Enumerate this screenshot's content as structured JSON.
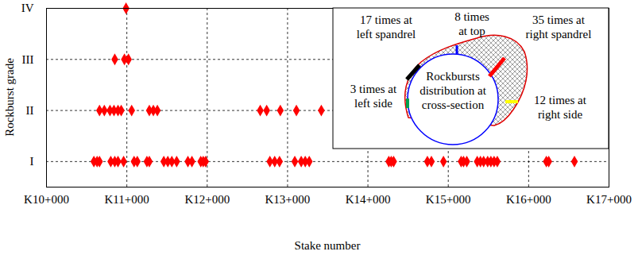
{
  "chart_data": {
    "type": "scatter",
    "x_label": "Stake number",
    "y_label": "Rockburst grade",
    "x": [
      10590,
      10630,
      10660,
      10800,
      10850,
      10890,
      10960,
      11090,
      11130,
      11250,
      11280,
      11460,
      11510,
      11560,
      11620,
      11760,
      11810,
      11920,
      11950,
      11980,
      12780,
      12840,
      12900,
      13090,
      13170,
      13220,
      13270,
      14260,
      14290,
      14320,
      14740,
      14790,
      14940,
      15160,
      15190,
      15230,
      15360,
      15400,
      15440,
      15490,
      15530,
      15570,
      15610,
      16220,
      16250,
      16570,
      10660,
      10720,
      10790,
      10840,
      10890,
      10930,
      11060,
      11280,
      11330,
      11380,
      12660,
      12740,
      12910,
      13110,
      13420,
      10850,
      10970,
      11020,
      10990
    ],
    "values": [
      1,
      1,
      1,
      1,
      1,
      1,
      1,
      1,
      1,
      1,
      1,
      1,
      1,
      1,
      1,
      1,
      1,
      1,
      1,
      1,
      1,
      1,
      1,
      1,
      1,
      1,
      1,
      1,
      1,
      1,
      1,
      1,
      1,
      1,
      1,
      1,
      1,
      1,
      1,
      1,
      1,
      1,
      1,
      1,
      1,
      1,
      2,
      2,
      2,
      2,
      2,
      2,
      2,
      2,
      2,
      2,
      2,
      2,
      2,
      2,
      2,
      3,
      3,
      3,
      4
    ],
    "color": "#ff0000",
    "marker": "diamond",
    "xlim": [
      10000,
      17000
    ],
    "xticks": [
      {
        "value": 10000,
        "label": "K10+000"
      },
      {
        "value": 11000,
        "label": "K11+000"
      },
      {
        "value": 12000,
        "label": "K12+000"
      },
      {
        "value": 13000,
        "label": "K13+000"
      },
      {
        "value": 14000,
        "label": "K14+000"
      },
      {
        "value": 15000,
        "label": "K15+000"
      },
      {
        "value": 16000,
        "label": "K16+000"
      },
      {
        "value": 17000,
        "label": "K17+000"
      }
    ],
    "ylim": [
      0.5,
      4
    ],
    "yticks": [
      {
        "value": 1,
        "label": "I"
      },
      {
        "value": 2,
        "label": "II"
      },
      {
        "value": 3,
        "label": "III"
      },
      {
        "value": 4,
        "label": "IV"
      }
    ],
    "grid": true,
    "inset": {
      "title": [
        "Rockbursts",
        "distribution at",
        "cross-section"
      ],
      "locations": [
        {
          "label": [
            "17 times at",
            "left spandrel"
          ],
          "color": "#000000"
        },
        {
          "label": [
            "8 times",
            "at top"
          ],
          "color": "#0000ff"
        },
        {
          "label": [
            "35 times at",
            "right spandrel"
          ],
          "color": "#ff0000"
        },
        {
          "label": [
            "3 times at",
            "left side"
          ],
          "color": "#00a050"
        },
        {
          "label": [
            "12 times at",
            "right side"
          ],
          "color": "#ffff00"
        }
      ]
    }
  }
}
